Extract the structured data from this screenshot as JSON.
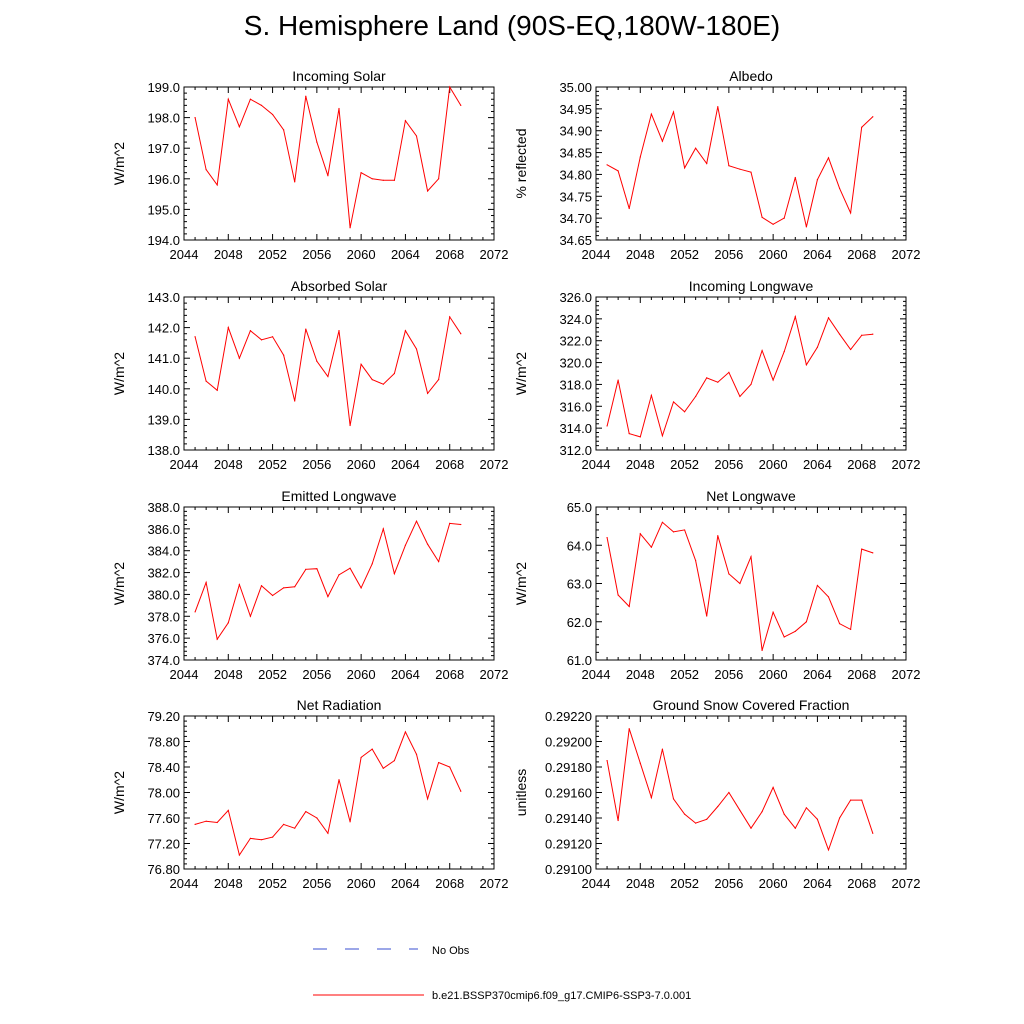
{
  "title": "S. Hemisphere Land (90S-EQ,180W-180E)",
  "legend": {
    "obs_label": "No Obs",
    "model_label": "b.e21.BSSP370cmip6.f09_g17.CMIP6-SSP3-7.0.001",
    "obs_color": "#3a4fd0",
    "model_color": "#ff0000"
  },
  "chart_data": [
    {
      "type": "line",
      "title": "Incoming Solar",
      "ylabel": "W/m^2",
      "xlim": [
        2044,
        2072
      ],
      "ylim": [
        194.0,
        199.0
      ],
      "xticks": [
        "2044",
        "2048",
        "2052",
        "2056",
        "2060",
        "2064",
        "2068",
        "2072"
      ],
      "yticks": [
        "194.0",
        "195.0",
        "196.0",
        "197.0",
        "198.0",
        "199.0"
      ],
      "series": [
        {
          "x": [
            2045,
            2046,
            2047,
            2048,
            2049,
            2050,
            2051,
            2052,
            2053,
            2054,
            2055,
            2056,
            2057,
            2058,
            2059,
            2060,
            2061,
            2062,
            2063,
            2064,
            2065,
            2066,
            2067,
            2068,
            2069
          ],
          "values": [
            198.0,
            196.3,
            195.8,
            198.6,
            197.7,
            198.6,
            198.4,
            198.1,
            197.6,
            195.9,
            198.7,
            197.2,
            196.1,
            198.3,
            194.4,
            196.2,
            196.0,
            195.95,
            195.95,
            197.9,
            197.4,
            195.6,
            196.0,
            199.0,
            198.4
          ]
        }
      ]
    },
    {
      "type": "line",
      "title": "Albedo",
      "ylabel": "% reflected",
      "xlim": [
        2044,
        2072
      ],
      "ylim": [
        34.65,
        35.0
      ],
      "xticks": [
        "2044",
        "2048",
        "2052",
        "2056",
        "2060",
        "2064",
        "2068",
        "2072"
      ],
      "yticks": [
        "34.65",
        "34.70",
        "34.75",
        "34.80",
        "34.85",
        "34.90",
        "34.95",
        "35.00"
      ],
      "series": [
        {
          "x": [
            2045,
            2046,
            2047,
            2048,
            2049,
            2050,
            2051,
            2052,
            2053,
            2054,
            2055,
            2056,
            2057,
            2058,
            2059,
            2060,
            2061,
            2062,
            2063,
            2064,
            2065,
            2066,
            2067,
            2068,
            2069
          ],
          "values": [
            34.822,
            34.808,
            34.722,
            34.84,
            34.938,
            34.876,
            34.943,
            34.815,
            34.86,
            34.825,
            34.955,
            34.82,
            34.812,
            34.805,
            34.702,
            34.686,
            34.7,
            34.793,
            34.68,
            34.788,
            34.838,
            34.768,
            34.712,
            34.908,
            34.932
          ]
        }
      ]
    },
    {
      "type": "line",
      "title": "Absorbed Solar",
      "ylabel": "W/m^2",
      "xlim": [
        2044,
        2072
      ],
      "ylim": [
        138.0,
        143.0
      ],
      "xticks": [
        "2044",
        "2048",
        "2052",
        "2056",
        "2060",
        "2064",
        "2068",
        "2072"
      ],
      "yticks": [
        "138.0",
        "139.0",
        "140.0",
        "141.0",
        "142.0",
        "143.0"
      ],
      "series": [
        {
          "x": [
            2045,
            2046,
            2047,
            2048,
            2049,
            2050,
            2051,
            2052,
            2053,
            2054,
            2055,
            2056,
            2057,
            2058,
            2059,
            2060,
            2061,
            2062,
            2063,
            2064,
            2065,
            2066,
            2067,
            2068,
            2069
          ],
          "values": [
            141.7,
            140.25,
            139.95,
            142.0,
            141.0,
            141.9,
            141.6,
            141.7,
            141.1,
            139.6,
            141.95,
            140.9,
            140.4,
            141.9,
            138.8,
            140.8,
            140.3,
            140.15,
            140.5,
            141.9,
            141.3,
            139.85,
            140.3,
            142.35,
            141.8
          ]
        }
      ]
    },
    {
      "type": "line",
      "title": "Incoming Longwave",
      "ylabel": "W/m^2",
      "xlim": [
        2044,
        2072
      ],
      "ylim": [
        312.0,
        326.0
      ],
      "xticks": [
        "2044",
        "2048",
        "2052",
        "2056",
        "2060",
        "2064",
        "2068",
        "2072"
      ],
      "yticks": [
        "312.0",
        "314.0",
        "316.0",
        "318.0",
        "320.0",
        "322.0",
        "324.0",
        "326.0"
      ],
      "series": [
        {
          "x": [
            2045,
            2046,
            2047,
            2048,
            2049,
            2050,
            2051,
            2052,
            2053,
            2054,
            2055,
            2056,
            2057,
            2058,
            2059,
            2060,
            2061,
            2062,
            2063,
            2064,
            2065,
            2066,
            2067,
            2068,
            2069
          ],
          "values": [
            314.2,
            318.4,
            313.5,
            313.2,
            317.0,
            313.3,
            316.4,
            315.5,
            316.9,
            318.6,
            318.2,
            319.1,
            316.9,
            318.0,
            321.1,
            318.4,
            321.0,
            324.2,
            319.8,
            321.4,
            324.1,
            322.6,
            321.2,
            322.5,
            322.6
          ]
        }
      ]
    },
    {
      "type": "line",
      "title": "Emitted Longwave",
      "ylabel": "W/m^2",
      "xlim": [
        2044,
        2072
      ],
      "ylim": [
        374.0,
        388.0
      ],
      "xticks": [
        "2044",
        "2048",
        "2052",
        "2056",
        "2060",
        "2064",
        "2068",
        "2072"
      ],
      "yticks": [
        "374.0",
        "376.0",
        "378.0",
        "380.0",
        "382.0",
        "384.0",
        "386.0",
        "388.0"
      ],
      "series": [
        {
          "x": [
            2045,
            2046,
            2047,
            2048,
            2049,
            2050,
            2051,
            2052,
            2053,
            2054,
            2055,
            2056,
            2057,
            2058,
            2059,
            2060,
            2061,
            2062,
            2063,
            2064,
            2065,
            2066,
            2067,
            2068,
            2069
          ],
          "values": [
            378.4,
            381.1,
            375.9,
            377.4,
            380.9,
            378.0,
            380.8,
            379.9,
            380.6,
            380.7,
            382.3,
            382.35,
            379.8,
            381.8,
            382.4,
            380.6,
            382.8,
            386.0,
            381.9,
            384.5,
            386.7,
            384.6,
            383.0,
            386.5,
            386.4
          ]
        }
      ]
    },
    {
      "type": "line",
      "title": "Net Longwave",
      "ylabel": "W/m^2",
      "xlim": [
        2044,
        2072
      ],
      "ylim": [
        61.0,
        65.0
      ],
      "xticks": [
        "2044",
        "2048",
        "2052",
        "2056",
        "2060",
        "2064",
        "2068",
        "2072"
      ],
      "yticks": [
        "61.0",
        "62.0",
        "63.0",
        "64.0",
        "65.0"
      ],
      "series": [
        {
          "x": [
            2045,
            2046,
            2047,
            2048,
            2049,
            2050,
            2051,
            2052,
            2053,
            2054,
            2055,
            2056,
            2057,
            2058,
            2059,
            2060,
            2061,
            2062,
            2063,
            2064,
            2065,
            2066,
            2067,
            2068,
            2069
          ],
          "values": [
            64.2,
            62.7,
            62.4,
            64.3,
            63.95,
            64.6,
            64.35,
            64.4,
            63.6,
            62.15,
            64.25,
            63.25,
            63.0,
            63.7,
            61.25,
            62.25,
            61.6,
            61.75,
            62.0,
            62.95,
            62.65,
            61.95,
            61.8,
            63.9,
            63.8
          ]
        }
      ]
    },
    {
      "type": "line",
      "title": "Net Radiation",
      "ylabel": "W/m^2",
      "xlim": [
        2044,
        2072
      ],
      "ylim": [
        76.8,
        79.2
      ],
      "xticks": [
        "2044",
        "2048",
        "2052",
        "2056",
        "2060",
        "2064",
        "2068",
        "2072"
      ],
      "yticks": [
        "76.80",
        "77.20",
        "77.60",
        "78.00",
        "78.40",
        "78.80",
        "79.20"
      ],
      "series": [
        {
          "x": [
            2045,
            2046,
            2047,
            2048,
            2049,
            2050,
            2051,
            2052,
            2053,
            2054,
            2055,
            2056,
            2057,
            2058,
            2059,
            2060,
            2061,
            2062,
            2063,
            2064,
            2065,
            2066,
            2067,
            2068,
            2069
          ],
          "values": [
            77.5,
            77.55,
            77.53,
            77.72,
            77.02,
            77.28,
            77.26,
            77.3,
            77.5,
            77.44,
            77.7,
            77.6,
            77.36,
            78.2,
            77.54,
            78.55,
            78.68,
            78.38,
            78.5,
            78.95,
            78.6,
            77.9,
            78.47,
            78.4,
            78.02
          ]
        }
      ]
    },
    {
      "type": "line",
      "title": "Ground Snow Covered Fraction",
      "ylabel": "unitless",
      "xlim": [
        2044,
        2072
      ],
      "ylim": [
        0.291,
        0.2922
      ],
      "xticks": [
        "2044",
        "2048",
        "2052",
        "2056",
        "2060",
        "2064",
        "2068",
        "2072"
      ],
      "yticks": [
        "0.29100",
        "0.29120",
        "0.29140",
        "0.29160",
        "0.29180",
        "0.29200",
        "0.29220"
      ],
      "series": [
        {
          "x": [
            2045,
            2046,
            2047,
            2048,
            2049,
            2050,
            2051,
            2052,
            2053,
            2054,
            2055,
            2056,
            2057,
            2058,
            2059,
            2060,
            2061,
            2062,
            2063,
            2064,
            2065,
            2066,
            2067,
            2068,
            2069
          ],
          "values": [
            0.29185,
            0.29138,
            0.2921,
            0.29183,
            0.29156,
            0.29194,
            0.29155,
            0.29143,
            0.29136,
            0.29139,
            0.29149,
            0.2916,
            0.29146,
            0.29132,
            0.29145,
            0.29164,
            0.29143,
            0.29132,
            0.29148,
            0.29139,
            0.29115,
            0.2914,
            0.29154,
            0.29154,
            0.29128
          ]
        }
      ]
    }
  ]
}
